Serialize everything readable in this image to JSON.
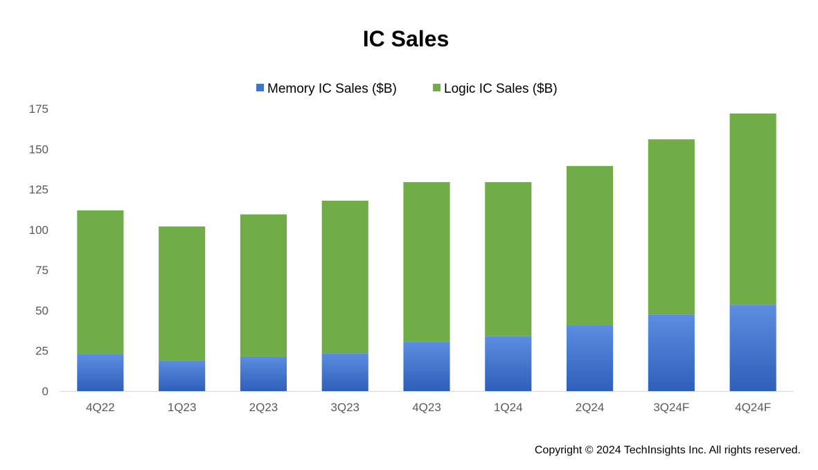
{
  "chart_data": {
    "type": "bar",
    "stacked": true,
    "title": "IC Sales",
    "categories": [
      "4Q22",
      "1Q23",
      "2Q23",
      "3Q23",
      "4Q23",
      "1Q24",
      "2Q24",
      "3Q24F",
      "4Q24F"
    ],
    "series": [
      {
        "name": "Memory IC Sales ($B)",
        "color": "#3f74cc",
        "values": [
          23,
          19,
          21.5,
          23.5,
          30.5,
          34,
          41,
          47.5,
          53.5
        ]
      },
      {
        "name": "Logic IC Sales ($B)",
        "color": "#70ad47",
        "values": [
          89,
          83,
          88,
          94.5,
          99,
          95.5,
          98.5,
          108.5,
          118.5
        ]
      }
    ],
    "ylim": [
      0,
      175
    ],
    "yticks": [
      0,
      25,
      50,
      75,
      100,
      125,
      150,
      175
    ],
    "grid": false,
    "legend_position": "top-center"
  },
  "footer": {
    "copyright": "Copyright © 2024 TechInsights Inc.  All rights reserved."
  }
}
